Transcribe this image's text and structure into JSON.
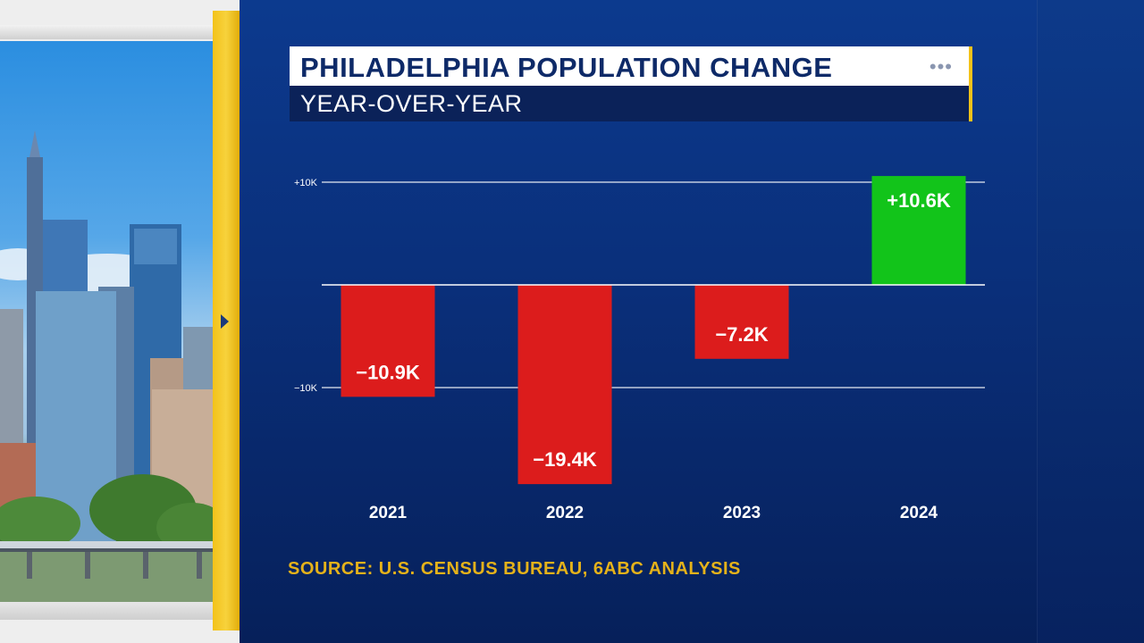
{
  "header": {
    "title": "PHILADELPHIA POPULATION CHANGE",
    "subtitle": "YEAR-OVER-YEAR",
    "dots": "•••"
  },
  "source": "SOURCE:  U.S. CENSUS BUREAU, 6ABC ANALYSIS",
  "colors": {
    "negative": "#dc1c1c",
    "positive": "#12c41a",
    "accent": "#f3c21a",
    "source": "#e5b21a"
  },
  "chart_data": {
    "type": "bar",
    "title": "PHILADELPHIA POPULATION CHANGE",
    "subtitle": "YEAR-OVER-YEAR",
    "categories": [
      "2021",
      "2022",
      "2023",
      "2024"
    ],
    "values": [
      -10900,
      -19400,
      -7200,
      10600
    ],
    "data_labels": [
      "−10.9K",
      "−19.4K",
      "−7.2K",
      "+10.6K"
    ],
    "y_ticks": [
      {
        "value": 10000,
        "label": "+10K"
      },
      {
        "value": -10000,
        "label": "−10K"
      }
    ],
    "ylim": [
      -20000,
      12000
    ],
    "grid": true,
    "xlabel": "",
    "ylabel": ""
  }
}
